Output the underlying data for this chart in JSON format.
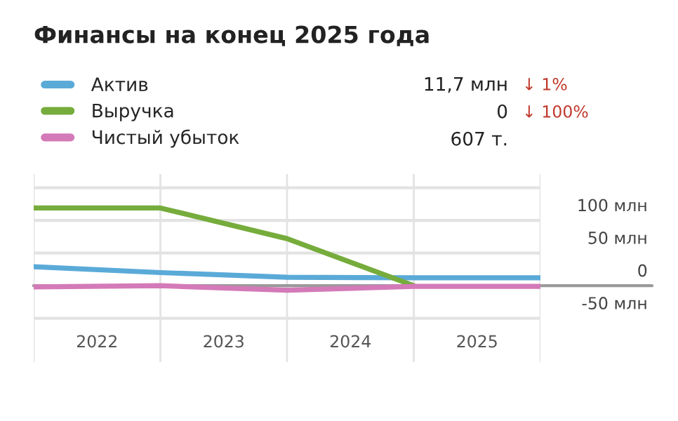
{
  "chart_data": {
    "type": "line",
    "title": "Финансы на конец 2025 года",
    "x": [
      2021,
      2022,
      2023,
      2024,
      2025
    ],
    "series": [
      {
        "name": "Актив",
        "color": "#5aaad8",
        "values": [
          29,
          20,
          13,
          12,
          12
        ]
      },
      {
        "name": "Выручка",
        "color": "#76ac3c",
        "values": [
          119,
          119,
          72,
          0,
          null
        ]
      },
      {
        "name": "Чистый убыток",
        "color": "#d47ab8",
        "values": [
          -2,
          0,
          -7,
          -1,
          -1
        ]
      }
    ],
    "xlim": [
      2021,
      2025
    ],
    "xticks": [
      {
        "value": 2021.5,
        "label": "2022"
      },
      {
        "value": 2022.5,
        "label": "2023"
      },
      {
        "value": 2023.5,
        "label": "2024"
      },
      {
        "value": 2024.5,
        "label": "2025"
      }
    ],
    "ylim": [
      -117,
      171
    ],
    "yticks": [
      {
        "value": 150,
        "label": null
      },
      {
        "value": 100,
        "label": "100 млн"
      },
      {
        "value": 50,
        "label": "50 млн"
      },
      {
        "value": 0,
        "label": "0"
      },
      {
        "value": -50,
        "label": "-50 млн"
      }
    ],
    "ref_lines": [
      {
        "axis": "y",
        "value": 0,
        "color": "#9a9a9a"
      },
      {
        "axis": "x",
        "value": 2021,
        "color": "#e3e3e3"
      },
      {
        "axis": "x",
        "value": 2022,
        "color": "#e3e3e3"
      },
      {
        "axis": "x",
        "value": 2023,
        "color": "#e3e3e3"
      },
      {
        "axis": "x",
        "value": 2024,
        "color": "#e3e3e3"
      },
      {
        "axis": "x",
        "value": 2025,
        "color": "#e3e3e3"
      }
    ],
    "annotations": [
      "11,7 млн",
      "↓ 1%",
      "0",
      "↓ 100%",
      "607 т."
    ],
    "grid": "y",
    "legend": "top left",
    "marker": "none",
    "line_style": "solid"
  }
}
